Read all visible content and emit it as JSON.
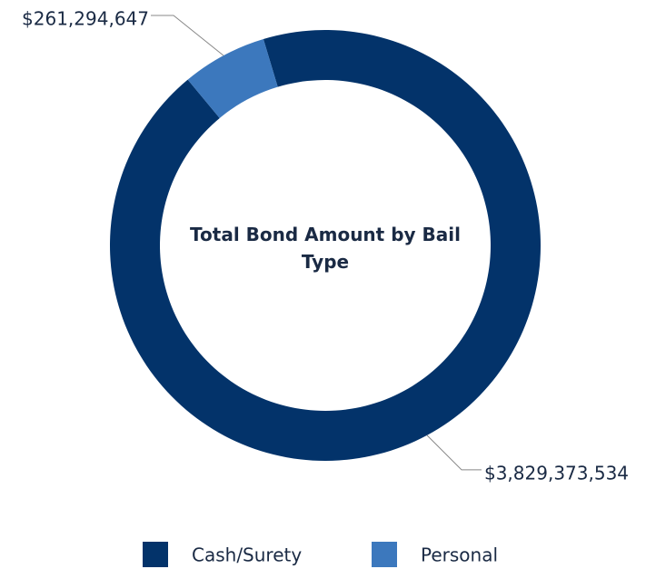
{
  "chart_data": {
    "type": "pie",
    "title": "Total Bond Amount by Bail Type",
    "categories": [
      "Cash/Surety",
      "Personal"
    ],
    "values": [
      3829373534,
      261294647
    ],
    "value_labels": [
      "$3,829,373,534",
      "$261,294,647"
    ],
    "colors": [
      "#03336a",
      "#3c78bd"
    ]
  }
}
